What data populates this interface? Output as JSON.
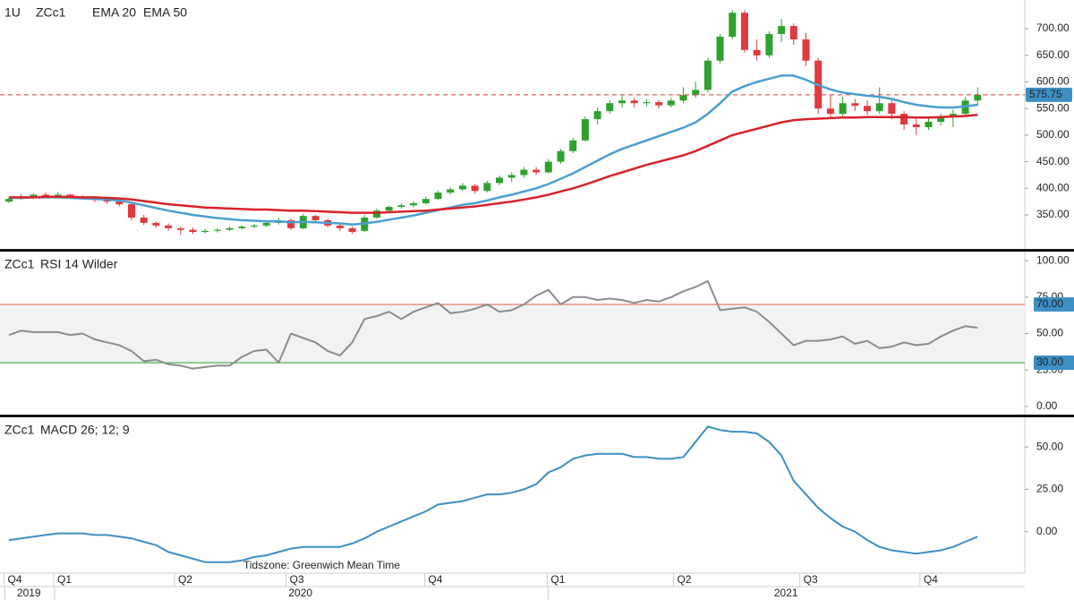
{
  "chart_data": [
    {
      "type": "candlestick",
      "interval": "1U",
      "symbol": "ZCc1",
      "up_color": "#2ea12e",
      "down_color": "#e0393e",
      "ylim": [
        286,
        754
      ],
      "yticks": [
        {
          "value": 350,
          "label": "350.00"
        },
        {
          "value": 400,
          "label": "400.00"
        },
        {
          "value": 450,
          "label": "450.00"
        },
        {
          "value": 500,
          "label": "500.00"
        },
        {
          "value": 550,
          "label": "550.00"
        },
        {
          "value": 600,
          "label": "600.00"
        },
        {
          "value": 650,
          "label": "650.00"
        },
        {
          "value": 700,
          "label": "700.00"
        }
      ],
      "candles": [
        [
          375,
          384,
          372,
          380
        ],
        [
          380,
          389,
          378,
          385
        ],
        [
          385,
          391,
          383,
          388
        ],
        [
          388,
          392,
          383,
          386
        ],
        [
          386,
          393,
          384,
          388
        ],
        [
          388,
          390,
          381,
          384
        ],
        [
          384,
          387,
          379,
          382
        ],
        [
          382,
          384,
          374,
          378
        ],
        [
          378,
          380,
          371,
          375
        ],
        [
          375,
          377,
          366,
          370
        ],
        [
          370,
          372,
          340,
          345
        ],
        [
          345,
          350,
          331,
          335
        ],
        [
          335,
          338,
          326,
          330
        ],
        [
          330,
          334,
          320,
          325
        ],
        [
          325,
          328,
          312,
          322
        ],
        [
          322,
          326,
          314,
          318
        ],
        [
          318,
          324,
          315,
          320
        ],
        [
          320,
          325,
          317,
          322
        ],
        [
          322,
          328,
          320,
          325
        ],
        [
          325,
          331,
          322,
          328
        ],
        [
          328,
          333,
          325,
          330
        ],
        [
          330,
          338,
          327,
          335
        ],
        [
          335,
          345,
          332,
          340
        ],
        [
          340,
          343,
          322,
          325
        ],
        [
          325,
          352,
          323,
          348
        ],
        [
          348,
          350,
          337,
          340
        ],
        [
          340,
          343,
          327,
          330
        ],
        [
          330,
          333,
          320,
          325
        ],
        [
          325,
          328,
          314,
          318
        ],
        [
          320,
          350,
          318,
          345
        ],
        [
          345,
          362,
          343,
          358
        ],
        [
          358,
          368,
          355,
          365
        ],
        [
          365,
          372,
          362,
          368
        ],
        [
          368,
          376,
          364,
          372
        ],
        [
          372,
          384,
          370,
          380
        ],
        [
          380,
          396,
          378,
          392
        ],
        [
          392,
          402,
          388,
          398
        ],
        [
          398,
          410,
          395,
          405
        ],
        [
          405,
          408,
          390,
          395
        ],
        [
          395,
          414,
          392,
          410
        ],
        [
          410,
          424,
          406,
          420
        ],
        [
          420,
          430,
          412,
          425
        ],
        [
          425,
          440,
          420,
          435
        ],
        [
          435,
          440,
          425,
          430
        ],
        [
          430,
          455,
          428,
          450
        ],
        [
          450,
          474,
          446,
          470
        ],
        [
          470,
          495,
          466,
          490
        ],
        [
          490,
          535,
          488,
          530
        ],
        [
          530,
          552,
          520,
          545
        ],
        [
          545,
          566,
          540,
          560
        ],
        [
          560,
          575,
          552,
          565
        ],
        [
          565,
          570,
          552,
          560
        ],
        [
          560,
          568,
          554,
          562
        ],
        [
          562,
          566,
          550,
          556
        ],
        [
          556,
          570,
          552,
          565
        ],
        [
          565,
          590,
          560,
          575
        ],
        [
          575,
          600,
          570,
          585
        ],
        [
          585,
          645,
          580,
          640
        ],
        [
          640,
          690,
          635,
          685
        ],
        [
          685,
          735,
          680,
          730
        ],
        [
          730,
          735,
          655,
          660
        ],
        [
          660,
          680,
          640,
          650
        ],
        [
          650,
          695,
          645,
          690
        ],
        [
          690,
          718,
          675,
          705
        ],
        [
          705,
          710,
          670,
          680
        ],
        [
          680,
          692,
          630,
          640
        ],
        [
          640,
          645,
          540,
          550
        ],
        [
          550,
          575,
          530,
          540
        ],
        [
          540,
          572,
          535,
          560
        ],
        [
          560,
          568,
          545,
          555
        ],
        [
          555,
          565,
          538,
          545
        ],
        [
          545,
          590,
          540,
          560
        ],
        [
          560,
          565,
          530,
          540
        ],
        [
          540,
          545,
          510,
          520
        ],
        [
          520,
          530,
          500,
          515
        ],
        [
          515,
          532,
          510,
          525
        ],
        [
          525,
          540,
          518,
          535
        ],
        [
          535,
          548,
          515,
          540
        ],
        [
          540,
          572,
          535,
          565
        ],
        [
          565,
          590,
          555,
          575.75
        ]
      ],
      "series": [
        {
          "name": "EMA 20",
          "color": "#4a9fd0",
          "values": [
            382,
            382,
            383,
            383,
            383,
            382,
            381,
            380,
            379,
            377,
            373,
            368,
            363,
            358,
            354,
            350,
            347,
            344,
            342,
            340,
            339,
            338,
            338,
            336,
            337,
            336,
            335,
            334,
            332,
            334,
            337,
            341,
            345,
            349,
            354,
            359,
            364,
            369,
            372,
            377,
            383,
            388,
            394,
            400,
            408,
            418,
            428,
            440,
            452,
            464,
            474,
            482,
            490,
            498,
            506,
            514,
            524,
            540,
            560,
            582,
            592,
            600,
            606,
            612,
            612,
            604,
            594,
            586,
            580,
            577,
            574,
            572,
            568,
            562,
            557,
            554,
            552,
            552,
            554,
            557
          ]
        },
        {
          "name": "EMA 50",
          "color": "#d8232a",
          "values": [
            383,
            383,
            383,
            384,
            384,
            384,
            383,
            383,
            382,
            381,
            379,
            376,
            373,
            370,
            368,
            366,
            364,
            363,
            362,
            361,
            360,
            360,
            359,
            358,
            358,
            357,
            356,
            355,
            354,
            354,
            354,
            355,
            356,
            357,
            358,
            360,
            362,
            364,
            366,
            369,
            372,
            375,
            379,
            383,
            388,
            394,
            400,
            407,
            415,
            423,
            430,
            437,
            444,
            450,
            456,
            462,
            470,
            480,
            490,
            500,
            506,
            512,
            518,
            524,
            528,
            530,
            531,
            532,
            533,
            533,
            534,
            534,
            534,
            534,
            533,
            533,
            534,
            535,
            536,
            538
          ]
        }
      ]
    },
    {
      "type": "line",
      "symbol": "ZCc1",
      "ylim": [
        -5.6,
        106.2
      ],
      "yticks": [
        {
          "value": 0,
          "label": "0.00"
        },
        {
          "value": 25,
          "label": "25.00"
        },
        {
          "value": 50,
          "label": "50.00"
        },
        {
          "value": 75,
          "label": "75.00"
        },
        {
          "value": 100,
          "label": "100.00"
        }
      ],
      "bands": [
        {
          "value": 70,
          "label": "70.00",
          "color": "#e0704f"
        },
        {
          "value": 30,
          "label": "30.00",
          "color": "#3aa64a"
        }
      ],
      "series": [
        {
          "name": "RSI 14 Wilder",
          "color": "#8c8c8c",
          "values": [
            49,
            52,
            51,
            51,
            51,
            49,
            50,
            46,
            44,
            42,
            38,
            31,
            32,
            29,
            28,
            26,
            27,
            28,
            28,
            34,
            38,
            39,
            30,
            50,
            47,
            44,
            38,
            35,
            44,
            60,
            62,
            65,
            60,
            65,
            68,
            71,
            64,
            65,
            67,
            70,
            65,
            66,
            70,
            76,
            80,
            70,
            75,
            75,
            73,
            74,
            73,
            71,
            73,
            72,
            75,
            79,
            82,
            86,
            66,
            67,
            68,
            65,
            58,
            50,
            42,
            45,
            45,
            46,
            48,
            43,
            45,
            40,
            41,
            44,
            42,
            43,
            48,
            52,
            55,
            54
          ]
        }
      ]
    },
    {
      "type": "line",
      "symbol": "ZCc1",
      "ylim": [
        -24.5,
        67.5
      ],
      "yticks": [
        {
          "value": 0,
          "label": "0.00"
        },
        {
          "value": 25,
          "label": "25.00"
        },
        {
          "value": 50,
          "label": "50.00"
        }
      ],
      "series": [
        {
          "name": "MACD 26; 12; 9",
          "color": "#3d8fc4",
          "values": [
            -5,
            -4,
            -3,
            -2,
            -1,
            -1,
            -1,
            -2,
            -2,
            -3,
            -4,
            -6,
            -8,
            -12,
            -14,
            -16,
            -18,
            -18,
            -18,
            -17,
            -15,
            -14,
            -12,
            -10,
            -9,
            -9,
            -9,
            -9,
            -7,
            -4,
            0,
            3,
            6,
            9,
            12,
            16,
            17,
            18,
            20,
            22,
            22,
            23,
            25,
            28,
            35,
            38,
            43,
            45,
            46,
            46,
            46,
            44,
            44,
            43,
            43,
            44,
            53,
            62,
            60,
            59,
            59,
            58,
            53,
            45,
            30,
            22,
            14,
            8,
            3,
            0,
            -5,
            -9,
            -11,
            -12,
            -13,
            -12,
            -11,
            -9,
            -6,
            -3
          ]
        }
      ]
    }
  ],
  "time_axis": {
    "quarters": [
      {
        "value": -0.4,
        "label": "Q4"
      },
      {
        "value": 3.65,
        "label": "Q1"
      },
      {
        "value": 13.5,
        "label": "Q2"
      },
      {
        "value": 22.6,
        "label": "Q3"
      },
      {
        "value": 33.9,
        "label": "Q4"
      },
      {
        "value": 43.9,
        "label": "Q1"
      },
      {
        "value": 54.2,
        "label": "Q2"
      },
      {
        "value": 64.5,
        "label": "Q3"
      },
      {
        "value": 74.3,
        "label": "Q4"
      }
    ],
    "years": [
      {
        "value": -0.4,
        "label": "2019"
      },
      {
        "value": 3.65,
        "label": "2020"
      },
      {
        "value": 43.9,
        "label": "2021"
      }
    ]
  },
  "timezone_note": "Tidszone: Greenwich Mean Time"
}
